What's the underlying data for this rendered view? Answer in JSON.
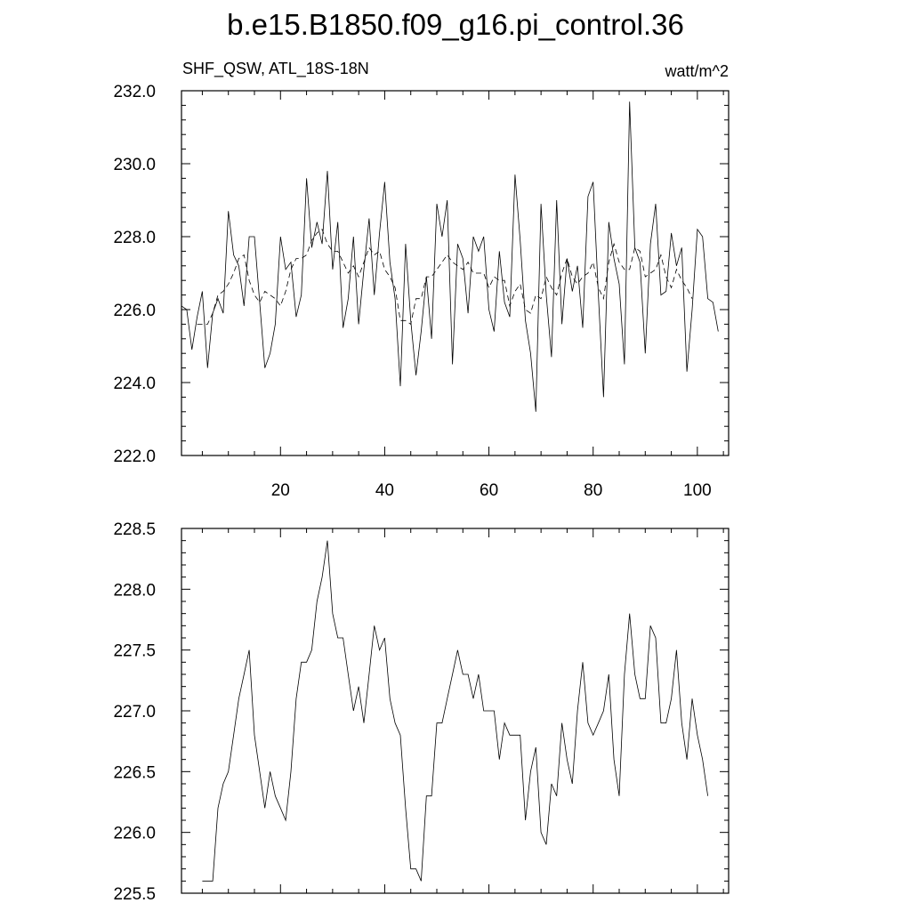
{
  "title": "b.e15.B1850.f09_g16.pi_control.36",
  "chart_data": [
    {
      "type": "line",
      "left_label": "SHF_QSW, ATL_18S-18N",
      "right_label": "watt/m^2",
      "xlim": [
        1,
        106
      ],
      "ylim": [
        222.0,
        232.0
      ],
      "yticks": [
        "222.0",
        "224.0",
        "226.0",
        "228.0",
        "230.0",
        "232.0"
      ],
      "xticks": [
        "20",
        "40",
        "60",
        "80",
        "100"
      ],
      "x_start": 1,
      "series": [
        {
          "style": "solid",
          "values": [
            226.1,
            226.0,
            224.9,
            225.8,
            226.5,
            224.4,
            225.9,
            226.3,
            225.9,
            228.7,
            227.5,
            227.2,
            226.1,
            228.0,
            228.0,
            226.2,
            224.4,
            224.8,
            225.6,
            228.0,
            227.1,
            227.3,
            225.8,
            226.4,
            229.6,
            227.7,
            228.4,
            227.8,
            229.8,
            227.1,
            228.4,
            225.5,
            226.3,
            228.0,
            225.6,
            227.1,
            228.5,
            226.4,
            228.1,
            229.5,
            227.3,
            226.3,
            223.9,
            227.8,
            225.7,
            224.2,
            225.4,
            226.9,
            225.2,
            228.9,
            228.0,
            229.0,
            224.5,
            227.8,
            227.4,
            225.9,
            228.0,
            227.6,
            228.0,
            226.0,
            225.4,
            227.6,
            226.2,
            225.8,
            229.7,
            227.9,
            225.7,
            224.8,
            223.2,
            228.9,
            226.4,
            224.7,
            229.0,
            225.6,
            227.4,
            226.5,
            227.2,
            225.5,
            229.1,
            229.5,
            226.4,
            223.6,
            228.4,
            227.4,
            226.7,
            224.5,
            231.7,
            227.7,
            227.3,
            224.8,
            227.8,
            228.9,
            226.4,
            226.5,
            228.1,
            227.2,
            227.7,
            224.3,
            226.0,
            228.2,
            228.0,
            226.3,
            226.2,
            225.4
          ]
        },
        {
          "style": "dashed",
          "values": [
            null,
            null,
            null,
            225.6,
            225.6,
            225.6,
            225.9,
            226.4,
            226.5,
            226.7,
            227.0,
            227.4,
            227.5,
            226.8,
            226.4,
            226.2,
            226.5,
            226.4,
            226.3,
            226.1,
            226.5,
            227.1,
            227.4,
            227.4,
            227.5,
            227.9,
            228.1,
            228.2,
            227.8,
            227.6,
            227.6,
            227.3,
            227.0,
            227.2,
            226.9,
            227.3,
            227.7,
            227.5,
            227.6,
            227.1,
            226.9,
            226.6,
            225.7,
            225.7,
            225.6,
            226.3,
            226.3,
            226.9,
            226.9,
            227.1,
            227.3,
            227.5,
            227.3,
            227.2,
            227.1,
            227.3,
            227.0,
            227.0,
            227.0,
            226.6,
            226.9,
            226.8,
            226.8,
            226.1,
            226.5,
            226.7,
            226.0,
            225.9,
            226.4,
            226.3,
            226.9,
            226.6,
            226.4,
            227.0,
            227.4,
            226.9,
            226.7,
            226.9,
            227.0,
            227.3,
            226.6,
            226.3,
            227.3,
            227.8,
            227.3,
            227.1,
            227.1,
            227.7,
            227.6,
            226.9,
            227.0,
            227.1,
            227.5,
            226.9,
            226.6,
            227.1,
            226.8,
            226.6,
            226.3,
            null,
            null,
            null,
            null,
            null
          ]
        }
      ]
    },
    {
      "type": "line",
      "xlim": [
        1,
        106
      ],
      "ylim": [
        225.5,
        228.5
      ],
      "yticks": [
        "225.5",
        "226.0",
        "226.5",
        "227.0",
        "227.5",
        "228.0",
        "228.5"
      ],
      "x_start": 5,
      "series": [
        {
          "style": "solid",
          "values": [
            225.6,
            225.6,
            225.6,
            226.2,
            226.4,
            226.5,
            226.8,
            227.1,
            227.3,
            227.5,
            226.8,
            226.5,
            226.2,
            226.5,
            226.3,
            226.2,
            226.1,
            226.5,
            227.1,
            227.4,
            227.4,
            227.5,
            227.9,
            228.1,
            228.4,
            227.8,
            227.6,
            227.6,
            227.3,
            227.0,
            227.2,
            226.9,
            227.3,
            227.7,
            227.5,
            227.6,
            227.1,
            226.9,
            226.8,
            226.2,
            225.7,
            225.7,
            225.6,
            226.3,
            226.3,
            226.9,
            226.9,
            227.1,
            227.3,
            227.5,
            227.3,
            227.3,
            227.1,
            227.3,
            227.0,
            227.0,
            227.0,
            226.6,
            226.9,
            226.8,
            226.8,
            226.8,
            226.1,
            226.5,
            226.7,
            226.0,
            225.9,
            226.4,
            226.3,
            226.9,
            226.6,
            226.4,
            227.0,
            227.4,
            226.9,
            226.8,
            226.9,
            227.0,
            227.3,
            226.6,
            226.3,
            227.3,
            227.8,
            227.3,
            227.1,
            227.1,
            227.7,
            227.6,
            226.9,
            226.9,
            227.1,
            227.5,
            226.9,
            226.6,
            227.1,
            226.8,
            226.6,
            226.3
          ]
        }
      ]
    }
  ]
}
